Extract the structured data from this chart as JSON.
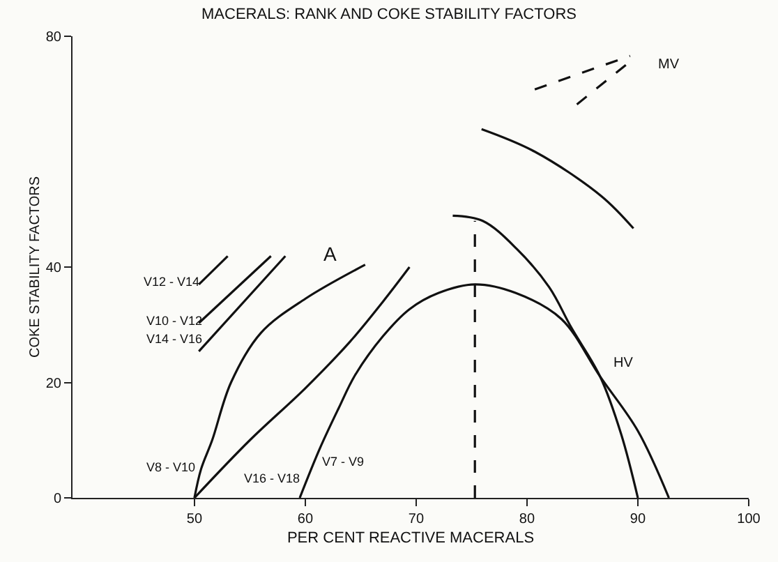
{
  "chart_data": {
    "type": "line",
    "title": "MACERALS: RANK AND COKE STABILITY FACTORS",
    "xlabel": "PER CENT REACTIVE MACERALS",
    "ylabel": "COKE STABILITY FACTORS",
    "xlim": [
      39,
      100
    ],
    "ylim": [
      0,
      80
    ],
    "xticks": [
      50,
      60,
      70,
      80,
      90,
      100
    ],
    "yticks": [
      0,
      20,
      40,
      80
    ],
    "grid": false,
    "marker": "none",
    "line_style": "solid",
    "series": [
      {
        "color": "#111111",
        "x": [
          50,
          50.6,
          51.6,
          53.3,
          56,
          60,
          65.4
        ],
        "values": [
          0,
          5,
          10,
          20,
          28.6,
          34.5,
          40.4
        ]
      },
      {
        "color": "#111111",
        "x": [
          50,
          55,
          60,
          64,
          67,
          69.4
        ],
        "values": [
          0,
          10,
          19,
          27,
          34,
          40
        ]
      },
      {
        "color": "#111111",
        "x": [
          59.5,
          61.3,
          63,
          64.5,
          67,
          69.4,
          72,
          75.3,
          79,
          83.1,
          86.6,
          90,
          92.8
        ],
        "values": [
          0,
          8.5,
          15.5,
          21.3,
          28,
          32.7,
          35.5,
          37,
          35.5,
          31,
          21,
          11.6,
          0
        ]
      },
      {
        "color": "#111111",
        "x": [
          73.3,
          76,
          79.1,
          82,
          84,
          86.6,
          88.5,
          90
        ],
        "values": [
          48.9,
          48,
          43.1,
          36.5,
          29.5,
          21,
          11,
          0
        ]
      },
      {
        "color": "#111111",
        "x": [
          75.9,
          80.7,
          86.7,
          89.6
        ],
        "values": [
          63.9,
          60,
          52.3,
          46.7
        ]
      },
      {
        "color": "#111111",
        "x": [
          50.4,
          53
        ],
        "values": [
          37,
          41.9
        ]
      },
      {
        "color": "#111111",
        "x": [
          50.4,
          56.9
        ],
        "values": [
          30.3,
          41.9
        ]
      },
      {
        "color": "#111111",
        "x": [
          50.4,
          58.2
        ],
        "values": [
          25.4,
          41.9
        ]
      },
      {
        "color": "#111111",
        "x": [
          75.3,
          75.3
        ],
        "values": [
          0,
          48
        ],
        "line_style": "dashed"
      },
      {
        "color": "#111111",
        "x": [
          80.7,
          89.3
        ],
        "values": [
          70.8,
          76.6
        ],
        "line_style": "dashed"
      },
      {
        "color": "#111111",
        "x": [
          84.5,
          89.3
        ],
        "values": [
          68.2,
          75.6
        ],
        "line_style": "dashed"
      }
    ],
    "annotations": [
      "V12 - V14",
      "V10 - V12",
      "V14 - V16",
      "V8 - V10",
      "V16 - V18",
      "V7 - V9",
      "HV",
      "MV",
      "A"
    ]
  }
}
